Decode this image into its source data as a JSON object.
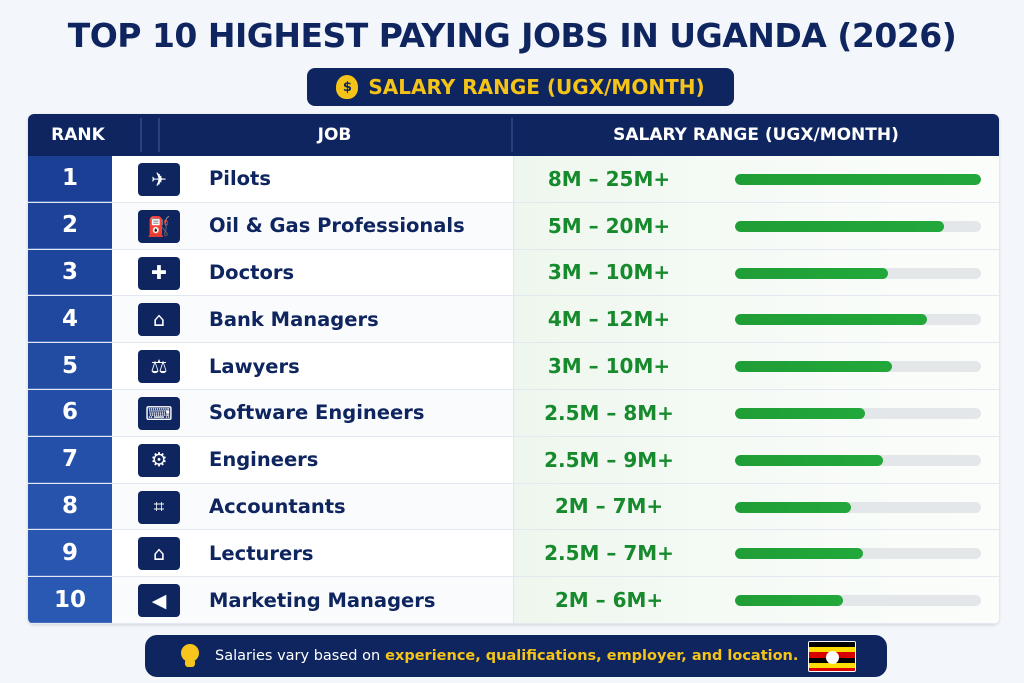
{
  "title": "TOP 10 HIGHEST PAYING JOBS IN UGANDA (2026)",
  "subtitle": "SALARY RANGE (UGX/MONTH)",
  "subtitle_icon": "money-bag-icon",
  "table": {
    "headers": {
      "rank": "RANK",
      "job": "JOB",
      "salary": "SALARY RANGE (UGX/MONTH)"
    }
  },
  "chart_data": {
    "type": "bar",
    "title": "TOP 10 HIGHEST PAYING JOBS IN UGANDA (2026)",
    "subtitle": "SALARY RANGE (UGX/MONTH)",
    "categories": [
      "Pilots",
      "Oil & Gas Professionals",
      "Doctors",
      "Bank Managers",
      "Lawyers",
      "Software Engineers",
      "Engineers",
      "Accountants",
      "Lecturers",
      "Marketing Managers"
    ],
    "ranks": [
      "1",
      "2",
      "3",
      "4",
      "5",
      "6",
      "7",
      "8",
      "9",
      "10"
    ],
    "salary_labels": [
      "8M – 25M+",
      "5M – 20M+",
      "3M – 10M+",
      "4M – 12M+",
      "3M – 10M+",
      "2.5M – 8M+",
      "2.5M – 9M+",
      "2M – 7M+",
      "2.5M – 7M+",
      "2M – 6M+"
    ],
    "bar_fill_fraction": [
      1.0,
      0.85,
      0.62,
      0.78,
      0.64,
      0.53,
      0.6,
      0.47,
      0.52,
      0.44
    ],
    "icons": [
      "pilot-icon",
      "oil-rig-icon",
      "doctor-icon",
      "bank-icon",
      "scales-icon",
      "code-monitor-icon",
      "gear-icon",
      "calculator-icon",
      "graduation-cap-icon",
      "megaphone-icon"
    ]
  },
  "footer": {
    "text_plain": "Salaries vary based on",
    "text_highlight": "experience, qualifications, employer, and location.",
    "icon": "lightbulb-icon",
    "flag": "uganda-flag-icon"
  },
  "colors": {
    "navy": "#0f2560",
    "yellow": "#f5c418",
    "green": "#168a2c",
    "bar_green": "#1f9e36",
    "rank_top": "#1b3f95",
    "rank_bottom": "#2a59b3"
  }
}
